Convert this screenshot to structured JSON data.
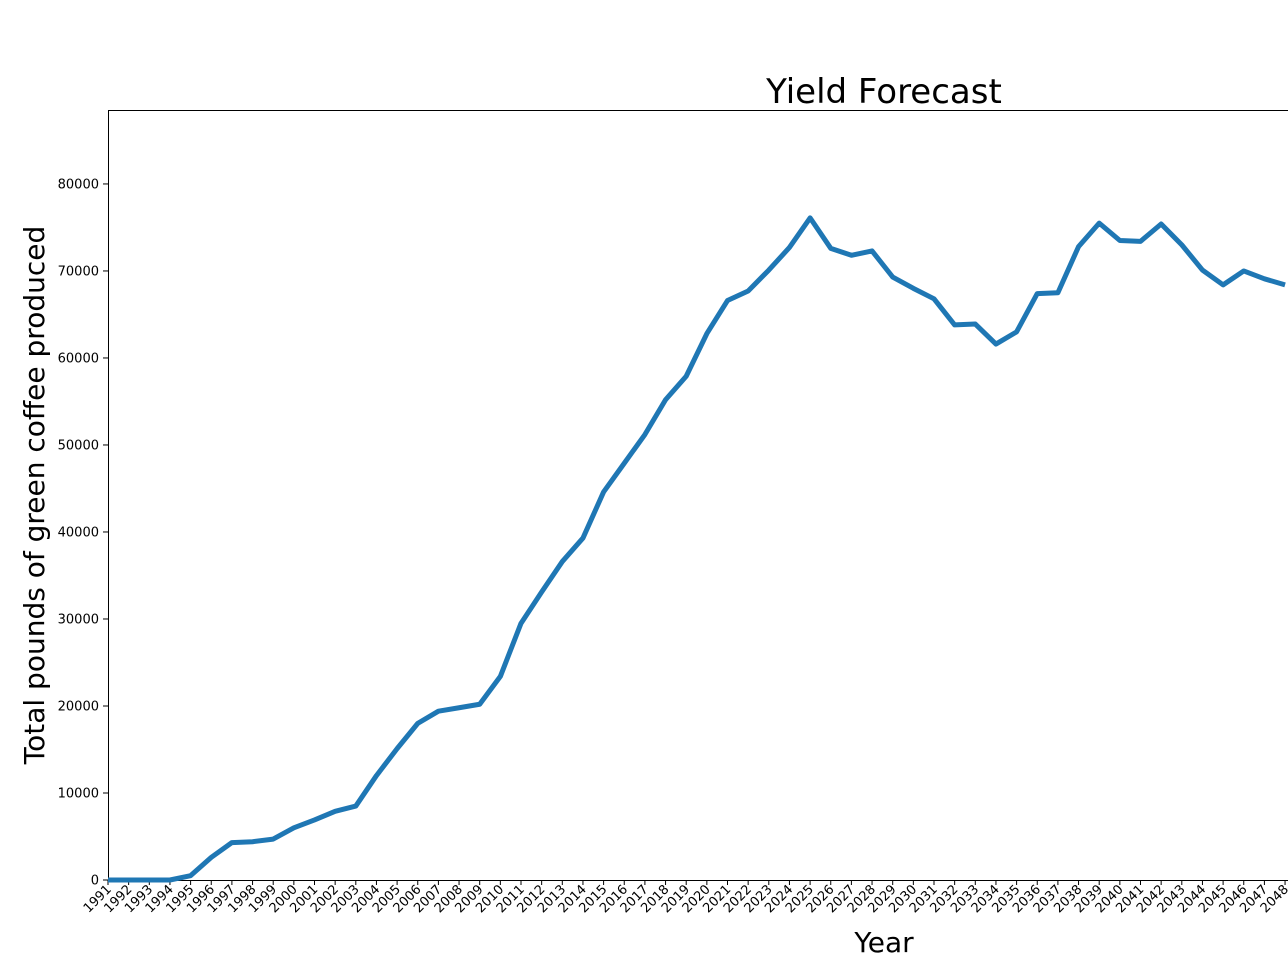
{
  "chart_data": {
    "type": "line",
    "title": "Yield Forecast",
    "xlabel": "Year",
    "ylabel": "Total pounds of green coffee produced",
    "x": [
      1991,
      1992,
      1993,
      1994,
      1995,
      1996,
      1997,
      1998,
      1999,
      2000,
      2001,
      2002,
      2003,
      2004,
      2005,
      2006,
      2007,
      2008,
      2009,
      2010,
      2011,
      2012,
      2013,
      2014,
      2015,
      2016,
      2017,
      2018,
      2019,
      2020,
      2021,
      2022,
      2023,
      2024,
      2025,
      2026,
      2027,
      2028,
      2029,
      2030,
      2031,
      2032,
      2033,
      2034,
      2035,
      2036,
      2037,
      2038,
      2039,
      2040,
      2041,
      2042,
      2043,
      2044,
      2045,
      2046,
      2047,
      2048
    ],
    "series": [
      {
        "values": [
          0,
          0,
          0,
          0,
          500,
          2600,
          4300,
          4400,
          4700,
          6000,
          6900,
          7900,
          8500,
          12000,
          15100,
          18000,
          19400,
          19800,
          20200,
          23400,
          29500,
          33100,
          36600,
          39300,
          44600,
          47900,
          51200,
          55200,
          57900,
          62800,
          66600,
          67700,
          70100,
          72700,
          76100,
          72600,
          71800,
          72300,
          69300,
          68000,
          66800,
          63800,
          63900,
          61600,
          63000,
          67400,
          67500,
          72800,
          75500,
          73500,
          73400,
          75400,
          73000,
          70100,
          68400,
          70000,
          69100,
          68400
        ]
      }
    ],
    "ylim": [
      0,
      88500
    ],
    "yticks": [
      0,
      10000,
      20000,
      30000,
      40000,
      50000,
      60000,
      70000,
      80000
    ],
    "line_color": "#1f77b4",
    "grid": false,
    "legend": "none"
  }
}
